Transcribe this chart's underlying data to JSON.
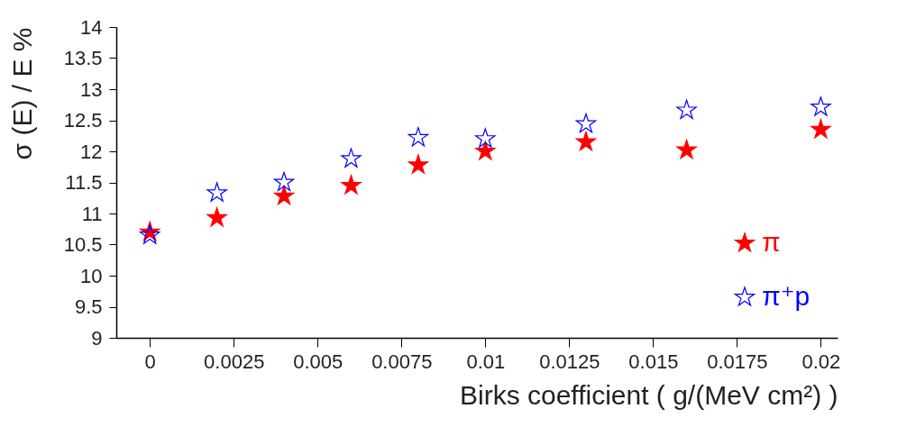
{
  "chart_data": {
    "type": "scatter",
    "xlabel": "Birks coefficient ( g/(MeV cm²) )",
    "ylabel": "σ (E) / E %",
    "x": [
      0,
      0.002,
      0.004,
      0.006,
      0.008,
      0.01,
      0.013,
      0.016,
      0.02
    ],
    "series": [
      {
        "name": "π",
        "color": "#ff0000",
        "values": [
          10.7,
          10.93,
          11.28,
          11.45,
          11.78,
          12.0,
          12.15,
          12.02,
          12.35
        ]
      },
      {
        "name": "π⁺p",
        "color": "#0000ff",
        "values": [
          10.65,
          11.33,
          11.5,
          11.88,
          12.22,
          12.2,
          12.44,
          12.66,
          12.71
        ]
      }
    ],
    "xlim": [
      -0.001,
      0.0205
    ],
    "xticks": [
      0,
      0.0025,
      0.005,
      0.0075,
      0.01,
      0.0125,
      0.015,
      0.0175,
      0.02
    ],
    "ylim": [
      9,
      14
    ],
    "yticks": [
      9,
      9.5,
      10,
      10.5,
      11,
      11.5,
      12,
      12.5,
      13,
      13.5,
      14
    ],
    "marker": "star",
    "legend": "bottom right",
    "grid": false
  }
}
